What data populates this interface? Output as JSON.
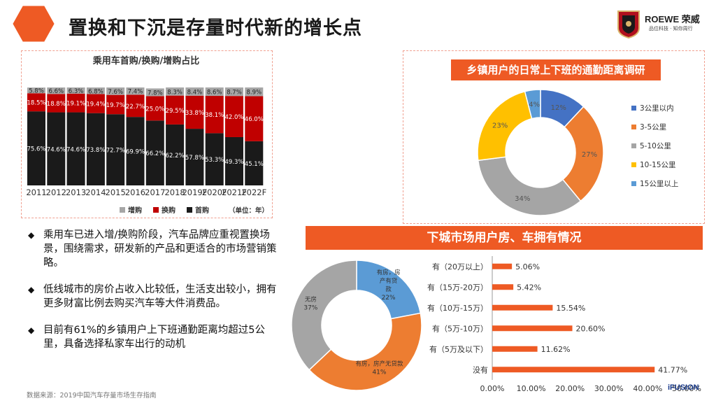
{
  "header": {
    "title": "置换和下沉是存量时代新的增长点",
    "brand": "ROEWE 荣威",
    "tagline": "品位科技 · 知你周行"
  },
  "colors": {
    "accent": "#ee5a24",
    "bar_first": "#1a1a1a",
    "bar_replace": "#c00000",
    "bar_add": "#a6a6a6"
  },
  "bullets": [
    "乘用车已进入增/换购阶段，汽车品牌应重视置换场景，围绕需求，研发新的产品和更适合的市场营销策略。",
    "低线城市的房价占收入比较低，生活支出较小，拥有更多财富比例去购买汽车等大件消费品。",
    "目前有61%的乡镇用户上下班通勤距离均超过5公里，具备选择私家车出行的动机"
  ],
  "footer": {
    "source": "数据来源：2019中国汽车存量市场生存指南",
    "logo_text": "iFUSION"
  },
  "chart_data": [
    {
      "type": "bar",
      "stacked": true,
      "title": "乘用车首购/换购/增购占比",
      "unit_note": "（单位：年）",
      "categories": [
        "2011",
        "2012",
        "2013",
        "2014",
        "2015",
        "2016",
        "2017",
        "2018",
        "2019F",
        "2020F",
        "2021F",
        "2022F"
      ],
      "series": [
        {
          "name": "首购",
          "values": [
            75.6,
            74.6,
            74.6,
            73.8,
            72.7,
            69.9,
            66.2,
            62.2,
            57.8,
            53.3,
            49.3,
            45.1
          ],
          "labels": [
            "75.6%",
            "74.6%",
            "74.6%",
            "73.8%",
            "72.7%",
            "69.9%",
            "66.2%",
            "62.2%",
            "57.8%",
            "53.3%",
            "49.3%",
            "45.1%"
          ]
        },
        {
          "name": "换购",
          "values": [
            18.5,
            18.8,
            19.1,
            19.4,
            19.7,
            22.7,
            25.0,
            29.5,
            33.8,
            38.1,
            42.0,
            46.0
          ],
          "labels": [
            "18.5%",
            "18.8%",
            "19.1%",
            "19.4%",
            "19.7%",
            "22.7%",
            "25.0%",
            "29.5%",
            "33.8%",
            "38.1%",
            "42.0%",
            "46.0%"
          ]
        },
        {
          "name": "增购",
          "values": [
            5.8,
            6.6,
            6.3,
            6.8,
            7.6,
            7.4,
            7.8,
            8.3,
            8.4,
            8.6,
            8.7,
            8.9
          ],
          "labels": [
            "5.8%",
            "6.6%",
            "6.3%",
            "6.8%",
            "7.6%",
            "7.4%",
            "7.8%",
            "8.3%",
            "8.4%",
            "8.6%",
            "8.7%",
            "8.9%"
          ]
        }
      ],
      "legend_order": [
        "增购",
        "换购",
        "首购"
      ],
      "legend": "bottom",
      "ylim": [
        0,
        100
      ]
    },
    {
      "type": "pie",
      "donut": true,
      "title": "乡镇用户的日常上下班的通勤距离调研",
      "categories": [
        "3公里以内",
        "3-5公里",
        "5-10公里",
        "10-15公里",
        "15公里以上"
      ],
      "values": [
        12,
        27,
        34,
        23,
        4
      ],
      "labels": [
        "12%",
        "27%",
        "34%",
        "23%",
        "4%"
      ],
      "colors": [
        "#4472c4",
        "#ed7d31",
        "#a5a5a5",
        "#ffc000",
        "#5b9bd5"
      ],
      "legend": "right"
    },
    {
      "type": "pie",
      "donut": true,
      "categories": [
        "有房，房产有贷款",
        "有房，房产无贷款",
        "无房"
      ],
      "values": [
        22,
        41,
        37
      ],
      "labels": [
        "22%",
        "41%",
        "37%"
      ],
      "colors": [
        "#5b9bd5",
        "#ed7d31",
        "#a5a5a5"
      ],
      "legend": "none"
    },
    {
      "type": "bar",
      "orientation": "horizontal",
      "title": "下城市场用户房、车拥有情况",
      "categories": [
        "有（20万以上）",
        "有（15万-20万）",
        "有（10万-15万）",
        "有（5万-10万）",
        "有（5万及以下）",
        "没有"
      ],
      "values": [
        5.06,
        5.42,
        15.54,
        20.6,
        11.62,
        41.77
      ],
      "labels": [
        "5.06%",
        "5.42%",
        "15.54%",
        "20.60%",
        "11.62%",
        "41.77%"
      ],
      "xticks": [
        "0.00%",
        "10.00%",
        "20.00%",
        "30.00%",
        "40.00%",
        "50.00%"
      ],
      "xlim": [
        0,
        50
      ],
      "color": "#ee5a24"
    }
  ]
}
